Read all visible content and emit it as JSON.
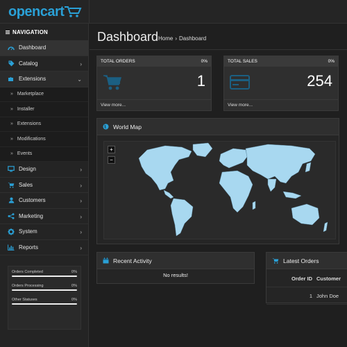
{
  "app": {
    "logo_text": "opencart"
  },
  "sidebar": {
    "heading": "NAVIGATION",
    "items": [
      {
        "label": "Dashboard",
        "icon": "dashboard-icon",
        "active": true
      },
      {
        "label": "Catalog",
        "icon": "tag-icon"
      },
      {
        "label": "Extensions",
        "icon": "puzzle-icon",
        "open": true
      }
    ],
    "sub_items": [
      "Marketplace",
      "Installer",
      "Extensions",
      "Modifications",
      "Events"
    ],
    "items_after": [
      {
        "label": "Design",
        "icon": "monitor-icon"
      },
      {
        "label": "Sales",
        "icon": "cart-icon"
      },
      {
        "label": "Customers",
        "icon": "user-icon"
      },
      {
        "label": "Marketing",
        "icon": "share-icon"
      },
      {
        "label": "System",
        "icon": "gear-icon"
      },
      {
        "label": "Reports",
        "icon": "bar-chart-icon"
      }
    ],
    "stats": [
      {
        "label": "Orders Completed",
        "value": "0%"
      },
      {
        "label": "Orders Processing",
        "value": "0%"
      },
      {
        "label": "Other Statuses",
        "value": "0%"
      }
    ]
  },
  "header": {
    "title": "Dashboard",
    "breadcrumb": [
      "Home",
      "›",
      "Dashboard"
    ]
  },
  "tiles": {
    "orders": {
      "title": "TOTAL ORDERS",
      "percent": "0%",
      "value": "1",
      "link": "View more..."
    },
    "sales": {
      "title": "TOTAL SALES",
      "percent": "0%",
      "value": "254",
      "link": "View more..."
    }
  },
  "world_map": {
    "title": "World Map",
    "zoom_in": "+",
    "zoom_out": "−"
  },
  "recent_activity": {
    "title": "Recent Activity",
    "empty": "No results!"
  },
  "latest_orders": {
    "title": "Latest Orders",
    "columns": [
      "Order ID",
      "Customer"
    ],
    "rows": [
      {
        "order_id": "1",
        "customer": "John Doe"
      }
    ]
  },
  "colors": {
    "accent": "#2aa0d6",
    "map_land": "#a8d8f0"
  }
}
